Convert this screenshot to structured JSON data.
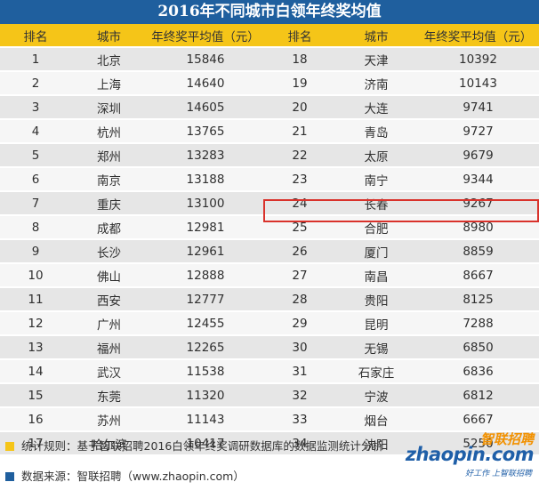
{
  "title": "2016年不同城市白领年终奖均值",
  "headers": [
    "排名",
    "城市",
    "年终奖平均值（元）",
    "排名",
    "城市",
    "年终奖平均值（元）"
  ],
  "rows": [
    {
      "l_rank": "1",
      "l_city": "北京",
      "l_value": "15846",
      "r_rank": "18",
      "r_city": "天津",
      "r_value": "10392"
    },
    {
      "l_rank": "2",
      "l_city": "上海",
      "l_value": "14640",
      "r_rank": "19",
      "r_city": "济南",
      "r_value": "10143"
    },
    {
      "l_rank": "3",
      "l_city": "深圳",
      "l_value": "14605",
      "r_rank": "20",
      "r_city": "大连",
      "r_value": "9741"
    },
    {
      "l_rank": "4",
      "l_city": "杭州",
      "l_value": "13765",
      "r_rank": "21",
      "r_city": "青岛",
      "r_value": "9727"
    },
    {
      "l_rank": "5",
      "l_city": "郑州",
      "l_value": "13283",
      "r_rank": "22",
      "r_city": "太原",
      "r_value": "9679"
    },
    {
      "l_rank": "6",
      "l_city": "南京",
      "l_value": "13188",
      "r_rank": "23",
      "r_city": "南宁",
      "r_value": "9344"
    },
    {
      "l_rank": "7",
      "l_city": "重庆",
      "l_value": "13100",
      "r_rank": "24",
      "r_city": "长春",
      "r_value": "9267"
    },
    {
      "l_rank": "8",
      "l_city": "成都",
      "l_value": "12981",
      "r_rank": "25",
      "r_city": "合肥",
      "r_value": "8980"
    },
    {
      "l_rank": "9",
      "l_city": "长沙",
      "l_value": "12961",
      "r_rank": "26",
      "r_city": "厦门",
      "r_value": "8859"
    },
    {
      "l_rank": "10",
      "l_city": "佛山",
      "l_value": "12888",
      "r_rank": "27",
      "r_city": "南昌",
      "r_value": "8667"
    },
    {
      "l_rank": "11",
      "l_city": "西安",
      "l_value": "12777",
      "r_rank": "28",
      "r_city": "贵阳",
      "r_value": "8125"
    },
    {
      "l_rank": "12",
      "l_city": "广州",
      "l_value": "12455",
      "r_rank": "29",
      "r_city": "昆明",
      "r_value": "7288"
    },
    {
      "l_rank": "13",
      "l_city": "福州",
      "l_value": "12265",
      "r_rank": "30",
      "r_city": "无锡",
      "r_value": "6850"
    },
    {
      "l_rank": "14",
      "l_city": "武汉",
      "l_value": "11538",
      "r_rank": "31",
      "r_city": "石家庄",
      "r_value": "6836"
    },
    {
      "l_rank": "15",
      "l_city": "东莞",
      "l_value": "11320",
      "r_rank": "32",
      "r_city": "宁波",
      "r_value": "6812"
    },
    {
      "l_rank": "16",
      "l_city": "苏州",
      "l_value": "11143",
      "r_rank": "33",
      "r_city": "烟台",
      "r_value": "6667"
    },
    {
      "l_rank": "17",
      "l_city": "哈尔滨",
      "l_value": "10417",
      "r_rank": "34",
      "r_city": "沈阳",
      "r_value": "5250"
    }
  ],
  "highlighted_row": 8,
  "footer": {
    "note1": "统计规则：基于智联招聘2016白领年终奖调研数据库的数据监测统计分析",
    "note2": "数据来源：智联招聘（www.zhaopin.com）",
    "note1_color": "#f5c518",
    "note2_color": "#1f5f9e"
  },
  "logo": {
    "cn": "智联招聘",
    "en": "zhaopin.com",
    "tagline": "好工作 上智联招聘"
  },
  "colors": {
    "title_bg": "#1f5f9e",
    "header_bg": "#f5c518",
    "row_odd": "#e6e6e6",
    "row_even": "#f6f6f6",
    "highlight_border": "#d9322b"
  }
}
